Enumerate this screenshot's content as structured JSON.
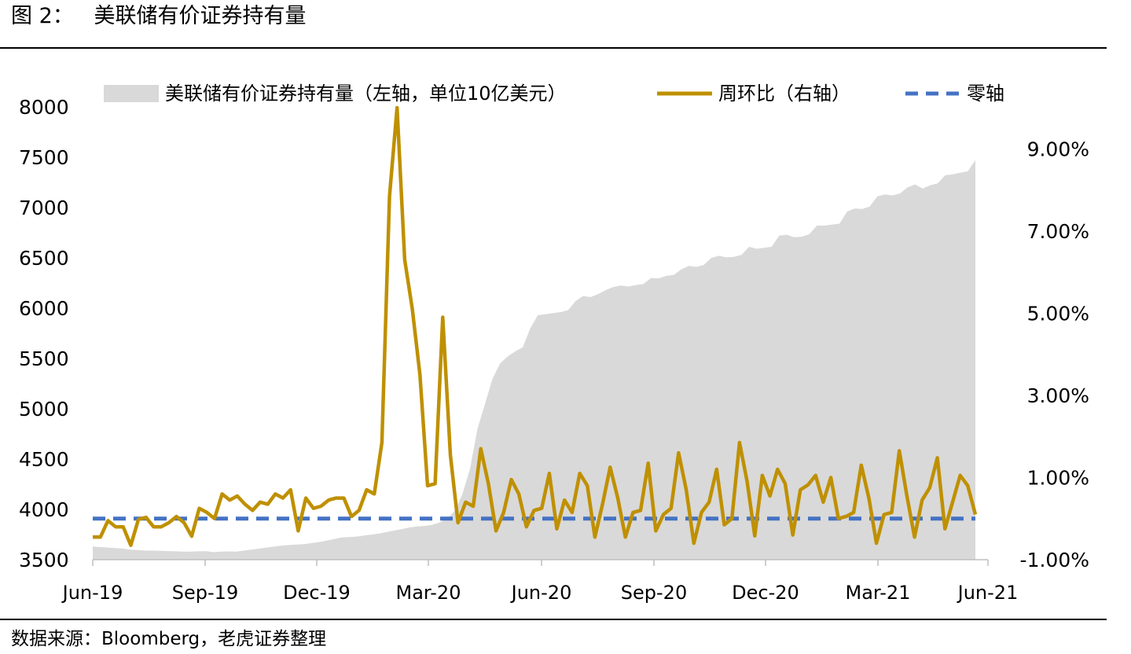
{
  "figure": {
    "title": "图 2：   美联储有价证券持有量",
    "source": "数据来源：Bloomberg，老虎证券整理"
  },
  "chart_data": {
    "type": "area",
    "legend_position": "top",
    "grid": false,
    "x_ticks": [
      "Jun-19",
      "Sep-19",
      "Dec-19",
      "Mar-20",
      "Jun-20",
      "Sep-20",
      "Dec-20",
      "Mar-21",
      "Jun-21"
    ],
    "left_axis": {
      "ylim": [
        3500,
        8000
      ],
      "ticks": [
        "3500",
        "4000",
        "4500",
        "5000",
        "5500",
        "6000",
        "6500",
        "7000",
        "7500",
        "8000"
      ]
    },
    "right_axis": {
      "ylim": [
        -1.0,
        10.0
      ],
      "ticks": [
        "-1.00%",
        "1.00%",
        "3.00%",
        "5.00%",
        "7.00%",
        "9.00%"
      ]
    },
    "colors": {
      "area": "#d9d9d9",
      "line": "#bf9000",
      "zero": "#4472c4"
    },
    "series": [
      {
        "name": "美联储有价证券持有量（左轴，单位10亿美元）",
        "axis": "left",
        "kind": "area",
        "values": [
          3630,
          3625,
          3620,
          3615,
          3610,
          3600,
          3595,
          3590,
          3590,
          3588,
          3585,
          3583,
          3580,
          3580,
          3583,
          3585,
          3575,
          3580,
          3582,
          3580,
          3590,
          3600,
          3610,
          3620,
          3630,
          3640,
          3645,
          3650,
          3655,
          3665,
          3675,
          3690,
          3705,
          3720,
          3725,
          3730,
          3740,
          3750,
          3760,
          3775,
          3790,
          3805,
          3820,
          3830,
          3835,
          3845,
          3870,
          3910,
          3985,
          4150,
          4400,
          4800,
          5050,
          5300,
          5450,
          5520,
          5570,
          5610,
          5800,
          5930,
          5940,
          5950,
          5960,
          5980,
          6070,
          6120,
          6110,
          6140,
          6180,
          6210,
          6225,
          6215,
          6230,
          6240,
          6300,
          6295,
          6320,
          6330,
          6385,
          6420,
          6410,
          6430,
          6500,
          6520,
          6505,
          6510,
          6530,
          6610,
          6590,
          6600,
          6610,
          6720,
          6730,
          6705,
          6710,
          6735,
          6820,
          6820,
          6830,
          6840,
          6960,
          6990,
          6985,
          7010,
          7110,
          7130,
          7120,
          7140,
          7200,
          7230,
          7190,
          7220,
          7240,
          7320,
          7330,
          7345,
          7360,
          7470
        ]
      },
      {
        "name": "周环比（右轴）",
        "axis": "right",
        "kind": "line",
        "values": [
          -0.45,
          -0.45,
          -0.05,
          -0.2,
          -0.2,
          -0.65,
          -0.02,
          0.03,
          -0.2,
          -0.2,
          -0.1,
          0.05,
          -0.1,
          -0.43,
          0.25,
          0.15,
          0.0,
          0.6,
          0.45,
          0.55,
          0.35,
          0.2,
          0.4,
          0.35,
          0.6,
          0.5,
          0.7,
          -0.3,
          0.5,
          0.25,
          0.3,
          0.45,
          0.5,
          0.5,
          0.05,
          0.2,
          0.7,
          0.6,
          1.85,
          7.85,
          10.0,
          6.3,
          5.1,
          3.5,
          0.8,
          0.85,
          4.9,
          1.55,
          -0.1,
          0.4,
          0.3,
          1.7,
          0.85,
          -0.3,
          0.15,
          0.95,
          0.6,
          -0.2,
          0.2,
          0.25,
          1.1,
          -0.25,
          0.45,
          0.15,
          1.1,
          0.8,
          -0.45,
          0.35,
          1.25,
          0.5,
          -0.45,
          0.15,
          0.2,
          1.35,
          -0.3,
          0.1,
          0.25,
          1.6,
          0.7,
          -0.6,
          0.15,
          0.4,
          1.2,
          -0.15,
          0.0,
          1.85,
          0.9,
          -0.42,
          1.05,
          0.55,
          1.2,
          0.85,
          -0.4,
          0.7,
          0.82,
          1.05,
          0.4,
          1.0,
          0.0,
          0.05,
          0.15,
          1.3,
          0.5,
          -0.6,
          0.1,
          0.15,
          1.65,
          0.55,
          -0.45,
          0.45,
          0.75,
          1.48,
          -0.25,
          0.4,
          1.05,
          0.8,
          0.1
        ]
      },
      {
        "name": "零轴",
        "axis": "right",
        "kind": "dashed",
        "values": [
          0,
          0
        ]
      }
    ]
  }
}
